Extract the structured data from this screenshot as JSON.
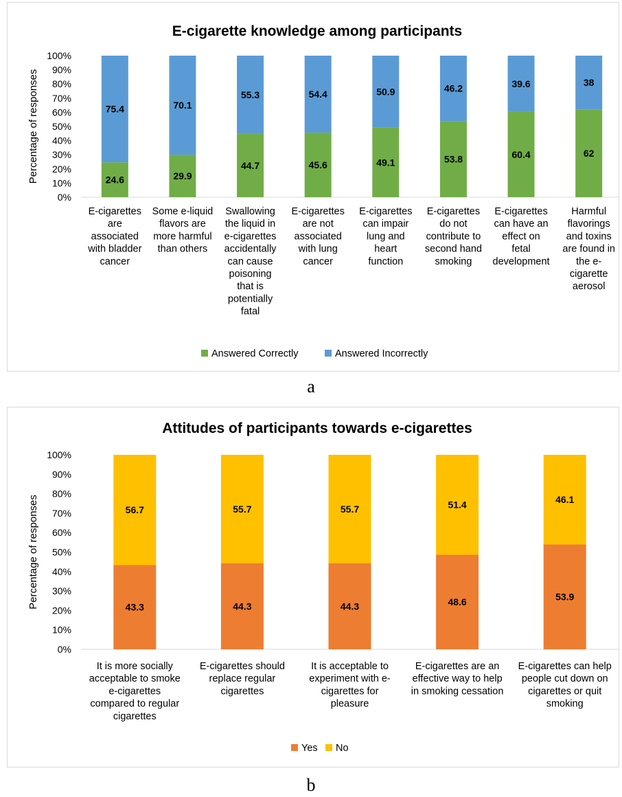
{
  "captions": {
    "a": "a",
    "b": "b"
  },
  "chart_data": [
    {
      "type": "bar",
      "stacked": true,
      "title": "E-cigarette knowledge among participants",
      "ylabel": "Percentage of responses",
      "xlabel": "",
      "ylim": [
        0,
        100
      ],
      "yticks": [
        "0%",
        "10%",
        "20%",
        "30%",
        "40%",
        "50%",
        "60%",
        "70%",
        "80%",
        "90%",
        "100%"
      ],
      "grid": false,
      "legend_position": "bottom",
      "categories": [
        [
          "E-cigarettes",
          "are",
          "associated",
          "with bladder",
          "cancer"
        ],
        [
          "Some e-liquid",
          "flavors are",
          "more harmful",
          "than others"
        ],
        [
          "Swallowing",
          "the liquid in",
          "e-cigarettes",
          "accidentally",
          "can cause",
          "poisoning",
          "that is",
          "potentially",
          "fatal"
        ],
        [
          "E-cigarettes",
          "are not",
          "associated",
          "with lung",
          "cancer"
        ],
        [
          "E-cigarettes",
          "can impair",
          "lung and",
          "heart",
          "function"
        ],
        [
          "E-cigarettes",
          "do not",
          "contribute to",
          "second hand",
          "smoking"
        ],
        [
          "E-cigarettes",
          "can have an",
          "effect on",
          "fetal",
          "development"
        ],
        [
          "Harmful",
          "flavorings",
          "and toxins",
          "are found in",
          "the e-",
          "cigarette",
          "aerosol"
        ]
      ],
      "series": [
        {
          "name": "Answered Correctly",
          "color": "#70ad47",
          "values": [
            24.6,
            29.9,
            44.7,
            45.6,
            49.1,
            53.8,
            60.4,
            62
          ],
          "labels": [
            "24.6",
            "29.9",
            "44.7",
            "45.6",
            "49.1",
            "53.8",
            "60.4",
            "62"
          ]
        },
        {
          "name": "Answered Incorrectly",
          "color": "#5b9bd5",
          "values": [
            75.4,
            70.1,
            55.3,
            54.4,
            50.9,
            46.2,
            39.6,
            38
          ],
          "labels": [
            "75.4",
            "70.1",
            "55.3",
            "54.4",
            "50.9",
            "46.2",
            "39.6",
            "38"
          ]
        }
      ]
    },
    {
      "type": "bar",
      "stacked": true,
      "title": "Attitudes of participants towards e-cigarettes",
      "ylabel": "Percentage of responses",
      "xlabel": "",
      "ylim": [
        0,
        100
      ],
      "yticks": [
        "0%",
        "10%",
        "20%",
        "30%",
        "40%",
        "50%",
        "60%",
        "70%",
        "80%",
        "90%",
        "100%"
      ],
      "grid": false,
      "legend_position": "bottom",
      "categories": [
        [
          "It is more socially",
          "acceptable to smoke",
          "e-cigarettes",
          "compared to regular",
          "cigarettes"
        ],
        [
          "E-cigarettes should",
          "replace regular",
          "cigarettes"
        ],
        [
          "It is acceptable to",
          "experiment with e-",
          "cigarettes for",
          "pleasure"
        ],
        [
          "E-cigarettes are an",
          "effective way to help",
          "in smoking cessation"
        ],
        [
          "E-cigarettes can help",
          "people cut down on",
          "cigarettes or quit",
          "smoking"
        ]
      ],
      "series": [
        {
          "name": "Yes",
          "color": "#ed7d31",
          "values": [
            43.3,
            44.3,
            44.3,
            48.6,
            53.9
          ],
          "labels": [
            "43.3",
            "44.3",
            "44.3",
            "48.6",
            "53.9"
          ]
        },
        {
          "name": "No",
          "color": "#ffc000",
          "values": [
            56.7,
            55.7,
            55.7,
            51.4,
            46.1
          ],
          "labels": [
            "56.7",
            "55.7",
            "55.7",
            "51.4",
            "46.1"
          ]
        }
      ]
    }
  ]
}
